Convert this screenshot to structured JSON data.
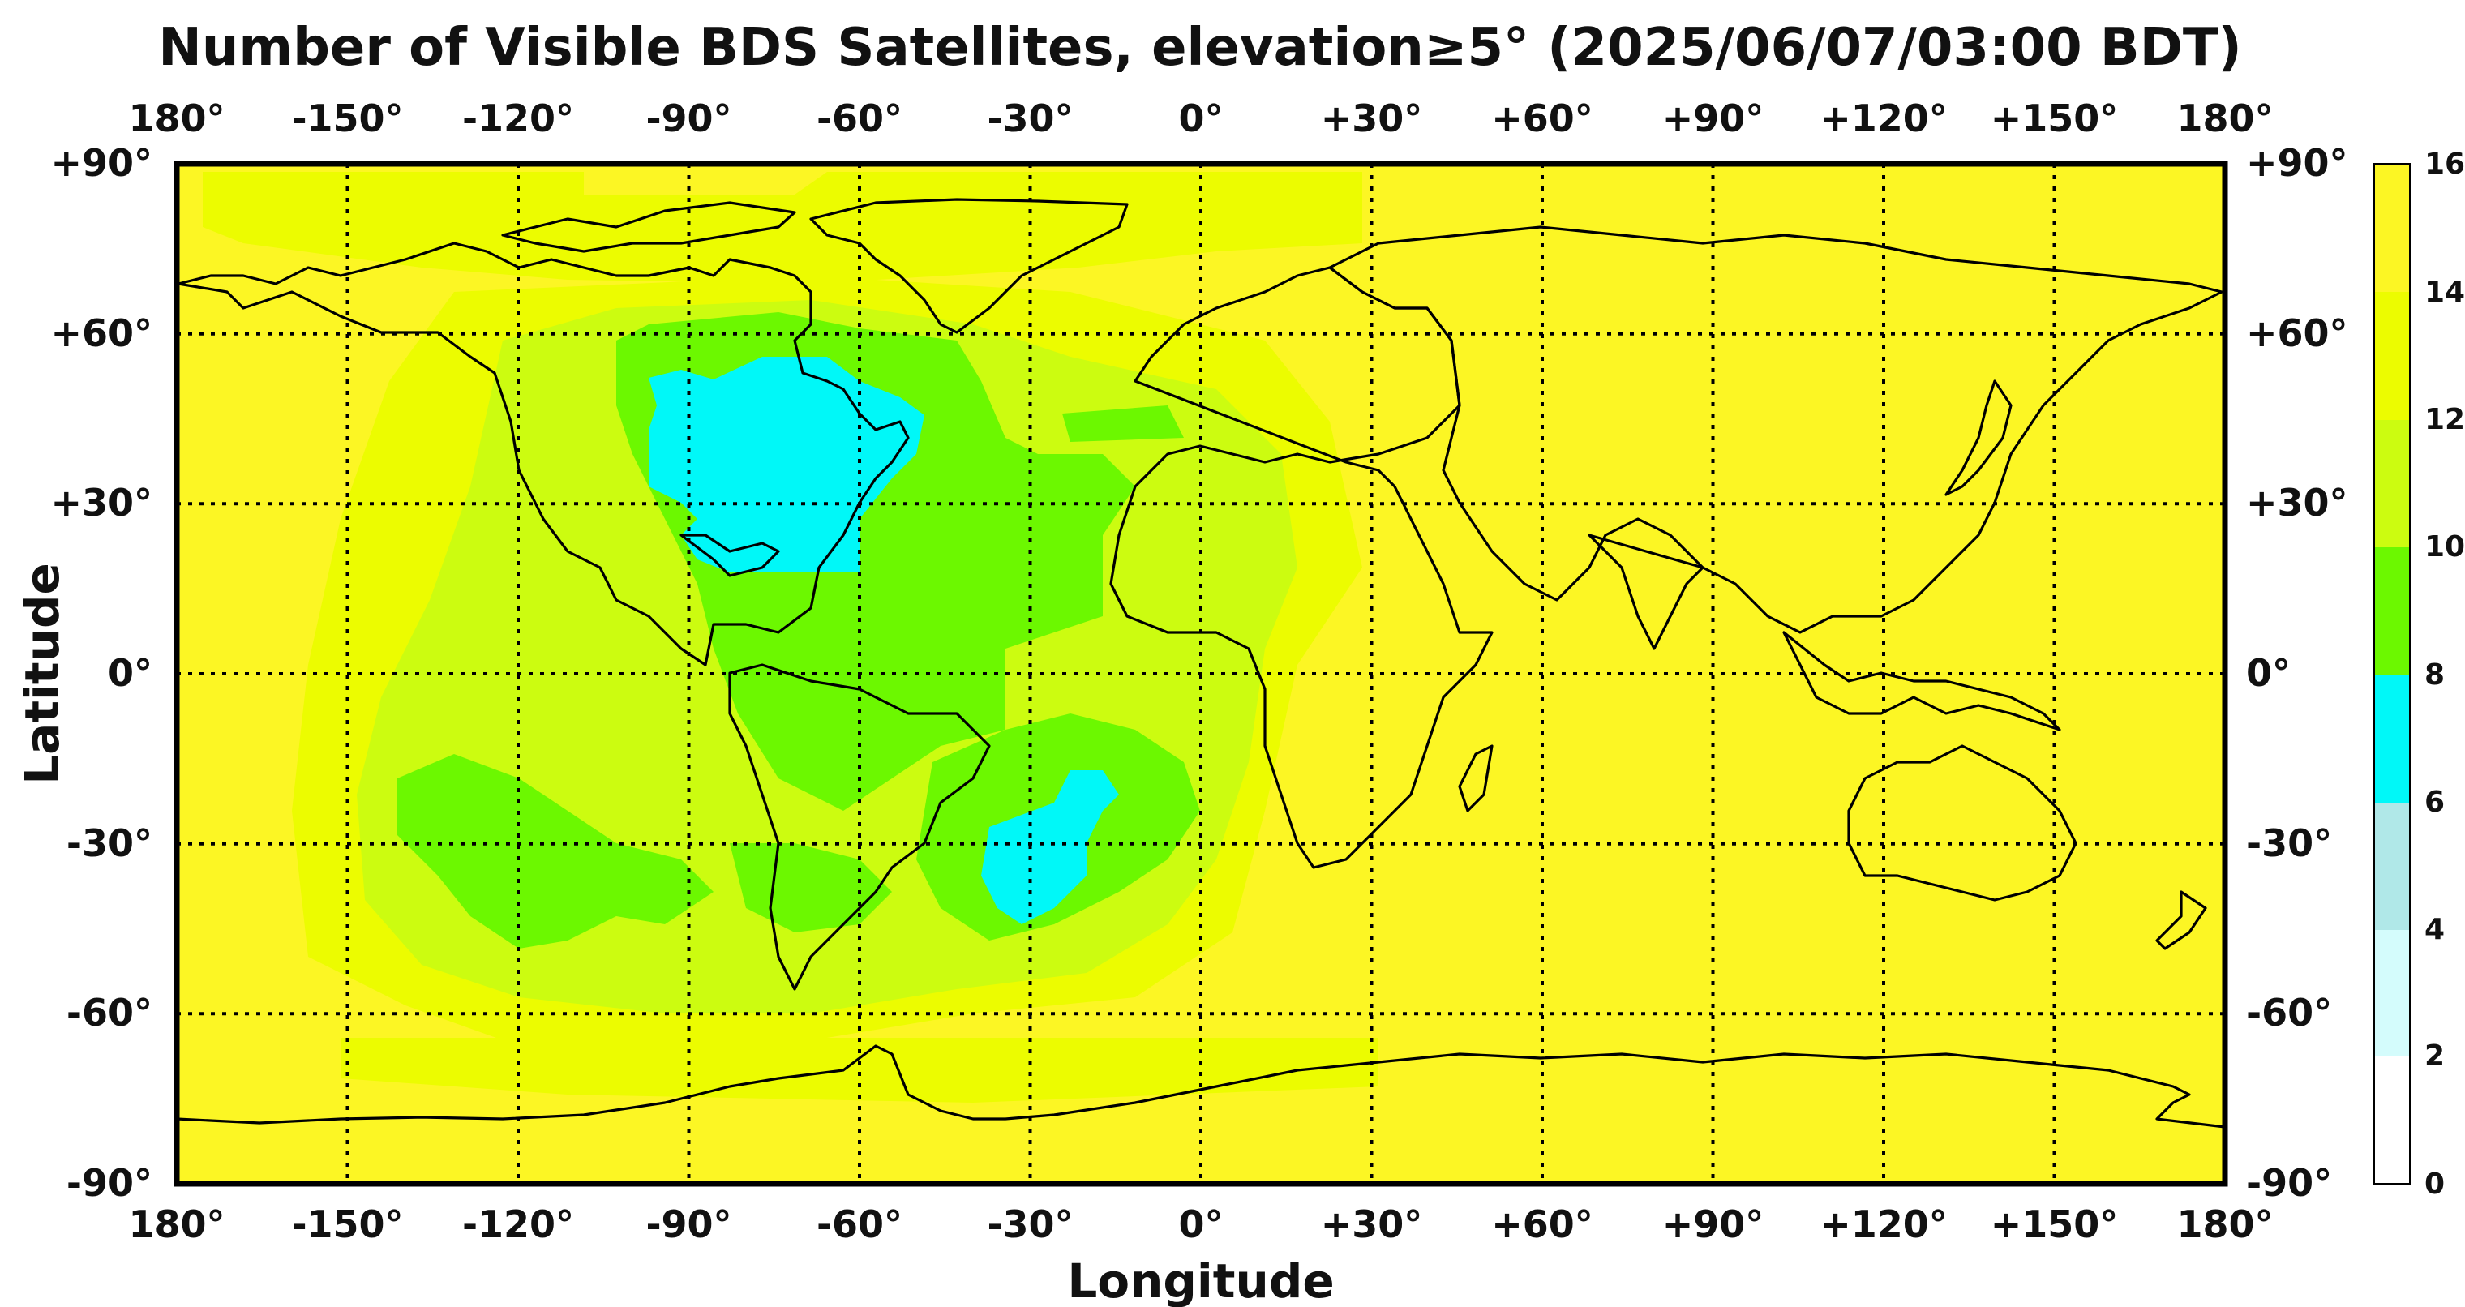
{
  "title": "Number of Visible BDS Satellites, elevation≥5° (2025/06/07/03:00 BDT)",
  "xlabel": "Longitude",
  "ylabel": "Latitude",
  "lon_ticks": [
    "180°",
    "-150°",
    "-120°",
    "-90°",
    "-60°",
    "-30°",
    "0°",
    "+30°",
    "+60°",
    "+90°",
    "+120°",
    "+150°",
    "180°"
  ],
  "lat_ticks": [
    "+90°",
    "+60°",
    "+30°",
    "0°",
    "-30°",
    "-60°",
    "-90°"
  ],
  "colorbar": {
    "ticks": [
      "16",
      "14",
      "12",
      "10",
      "8",
      "6",
      "4",
      "2",
      "0"
    ],
    "colors": [
      "#ffffff",
      "#d4fcfc",
      "#b0e8e8",
      "#00f8f8",
      "#6cf800",
      "#ccfc10",
      "#ecfc00",
      "#fcf624"
    ]
  },
  "map_fill_levels": [
    {
      "range": "14-16",
      "color": "#fcf624"
    },
    {
      "range": "12-14",
      "color": "#ecfc00"
    },
    {
      "range": "10-12",
      "color": "#ccfc10"
    },
    {
      "range": "8-10",
      "color": "#6cf800"
    },
    {
      "range": "6-8",
      "color": "#00f8f8"
    }
  ]
}
